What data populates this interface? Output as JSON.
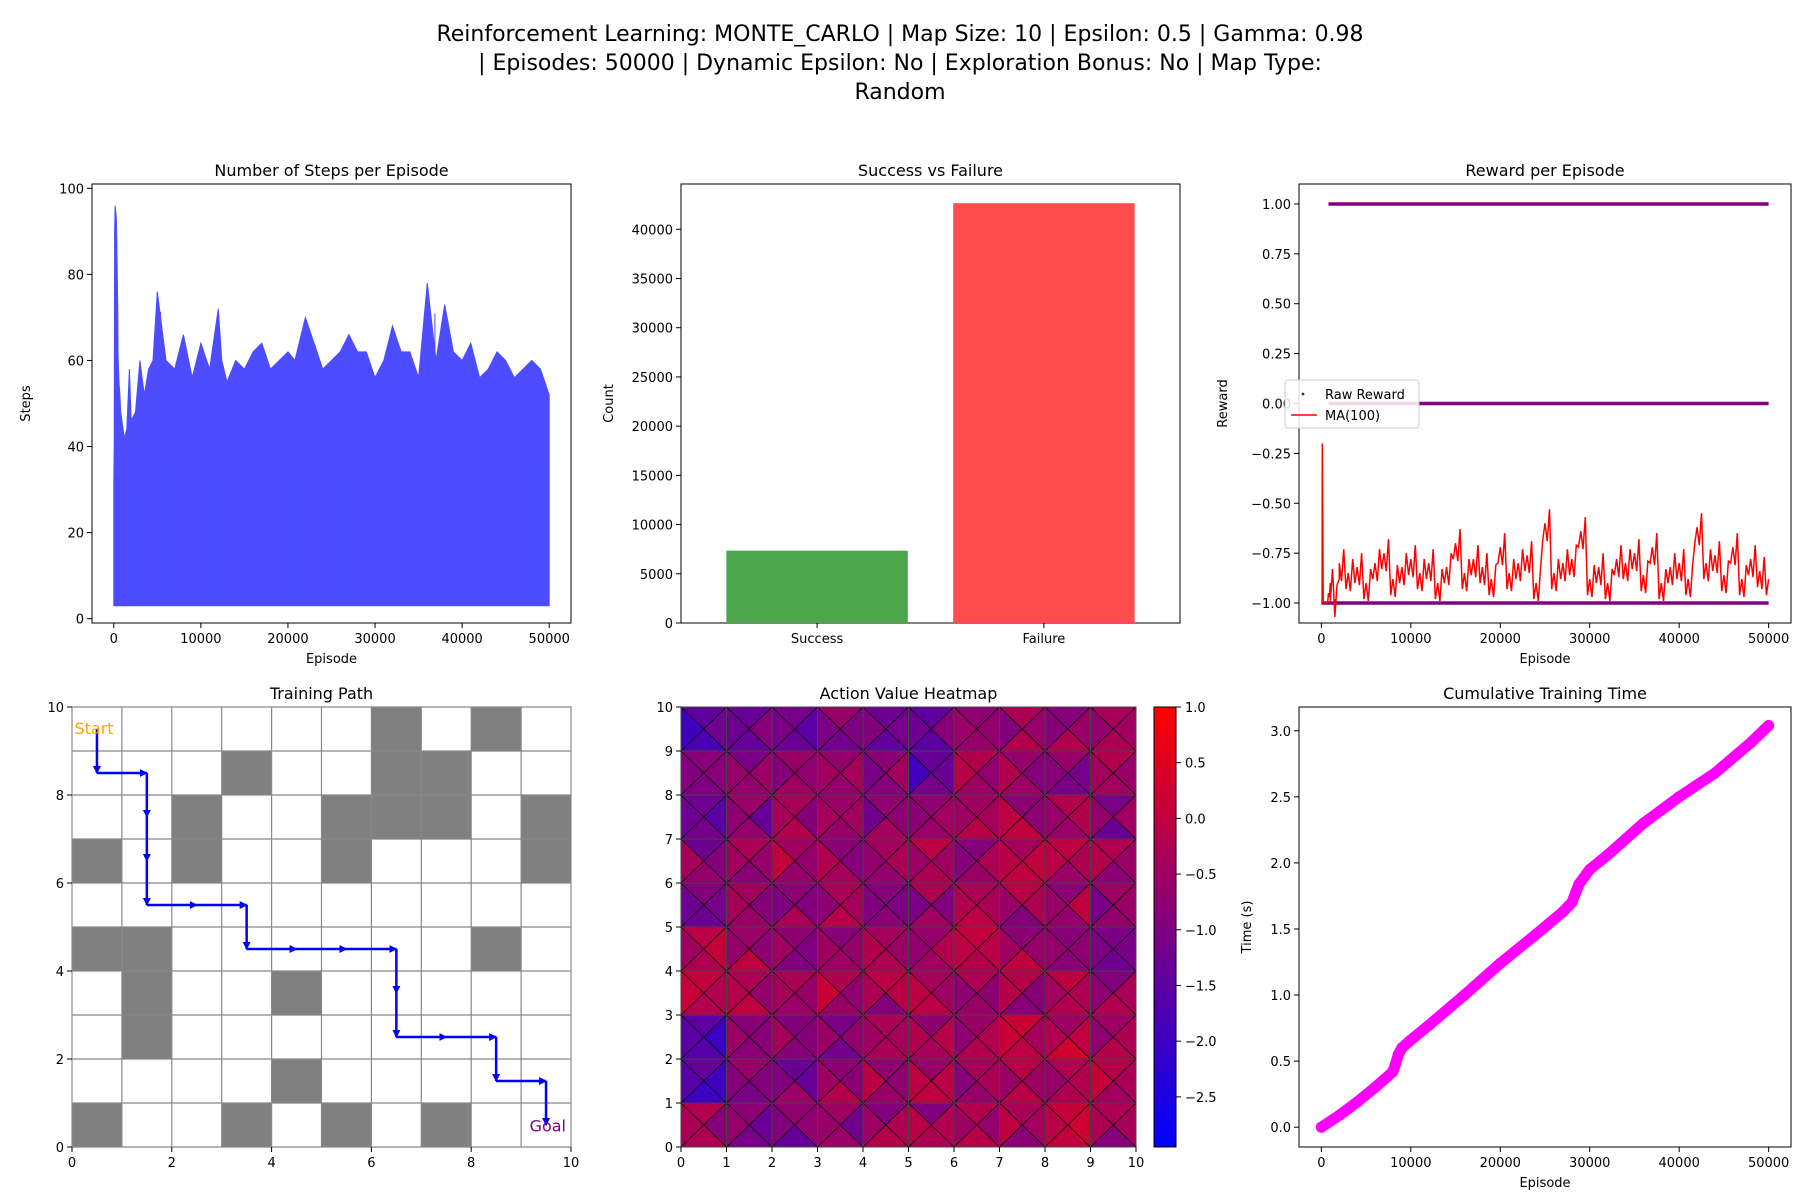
{
  "figure": {
    "suptitle_lines": [
      "Reinforcement Learning: MONTE_CARLO | Map Size: 10 | Epsilon: 0.5 | Gamma: 0.98",
      "| Episodes: 50000 | Dynamic Epsilon: No | Exploration Bonus: No | Map Type:",
      "Random"
    ]
  },
  "chart_data": [
    {
      "id": "steps",
      "type": "line",
      "title": "Number of Steps per Episode",
      "xlabel": "Episode",
      "ylabel": "Steps",
      "xlim": [
        -2500,
        52500
      ],
      "ylim": [
        -1,
        101
      ],
      "xticks": [
        0,
        10000,
        20000,
        30000,
        40000,
        50000
      ],
      "yticks": [
        0,
        20,
        40,
        60,
        80,
        100
      ],
      "color": "#4d4dff",
      "series": [
        {
          "x": [
            0,
            50,
            100,
            150,
            200,
            250,
            300,
            350,
            400,
            450,
            500,
            600,
            700,
            800,
            1000,
            1200,
            1500,
            1800,
            2000,
            2500,
            3000,
            3500,
            4000,
            4500,
            5000,
            6000,
            7000,
            8000,
            9000,
            10000,
            11000,
            12000,
            12400,
            13000,
            14000,
            15000,
            16000,
            17000,
            18000,
            20000,
            20800,
            22000,
            24000,
            26000,
            27000,
            28000,
            29000,
            30000,
            31000,
            32000,
            33000,
            34000,
            35000,
            36000,
            37000,
            38000,
            39000,
            40000,
            41000,
            42000,
            43000,
            44000,
            45000,
            46000,
            47000,
            48000,
            49000,
            50000
          ],
          "peak": [
            32,
            40,
            90,
            96,
            95,
            94,
            93,
            88,
            80,
            73,
            61,
            55,
            52,
            48,
            45,
            42,
            44,
            58,
            46,
            48,
            60,
            52,
            58,
            60,
            76,
            60,
            58,
            66,
            56,
            64,
            58,
            72,
            60,
            55,
            60,
            58,
            62,
            64,
            58,
            62,
            60,
            70,
            58,
            62,
            66,
            62,
            62,
            56,
            60,
            68,
            62,
            62,
            56,
            78,
            60,
            73,
            62,
            60,
            64,
            56,
            58,
            62,
            60,
            56,
            58,
            60,
            58,
            52
          ],
          "floor": 3
        }
      ]
    },
    {
      "id": "success",
      "type": "bar",
      "title": "Success vs Failure",
      "xlabel": "",
      "ylabel": "Count",
      "ylim": [
        0,
        44600
      ],
      "yticks": [
        0,
        5000,
        10000,
        15000,
        20000,
        25000,
        30000,
        35000,
        40000
      ],
      "categories": [
        "Success",
        "Failure"
      ],
      "values": [
        7350,
        42650
      ],
      "colors": [
        "#4ca64c",
        "#ff4d4d"
      ]
    },
    {
      "id": "reward",
      "type": "line",
      "title": "Reward per Episode",
      "xlabel": "Episode",
      "ylabel": "Reward",
      "xlim": [
        -2500,
        52500
      ],
      "ylim": [
        -1.1,
        1.1
      ],
      "xticks": [
        0,
        10000,
        20000,
        30000,
        40000,
        50000
      ],
      "yticks": [
        -1.0,
        -0.75,
        -0.5,
        -0.25,
        0.0,
        0.25,
        0.5,
        0.75,
        1.0
      ],
      "legend": {
        "position": "center-left",
        "entries": [
          "Raw Reward",
          "MA(100)"
        ]
      },
      "raw_reward_levels": [
        -1,
        0,
        1
      ],
      "raw_color": "#800080",
      "ma_color": "#ff0000",
      "ma100": {
        "x": [
          0,
          80,
          100,
          200,
          400,
          600,
          700,
          800,
          900,
          1000,
          1500,
          2000,
          3000,
          4000,
          5000,
          6000,
          7000,
          8000,
          9000,
          10000,
          11000,
          12000,
          13000,
          14000,
          15000,
          16000,
          17000,
          18000,
          19000,
          20000,
          21000,
          22000,
          23000,
          24000,
          25000,
          26000,
          27000,
          28000,
          29000,
          30000,
          31000,
          32000,
          33000,
          34000,
          35000,
          36000,
          37000,
          38000,
          39000,
          40000,
          41000,
          42000,
          43000,
          44000,
          45000,
          46000,
          47000,
          48000,
          49000,
          50000
        ],
        "y": [
          -1.0,
          -1.0,
          -0.2,
          -1.0,
          -1.0,
          -1.0,
          -1.0,
          -0.95,
          -0.97,
          -0.9,
          -0.98,
          -0.8,
          -0.85,
          -0.82,
          -0.9,
          -0.8,
          -0.75,
          -0.88,
          -0.82,
          -0.78,
          -0.85,
          -0.8,
          -0.9,
          -0.82,
          -0.7,
          -0.85,
          -0.78,
          -0.82,
          -0.88,
          -0.72,
          -0.85,
          -0.8,
          -0.76,
          -0.9,
          -0.6,
          -0.85,
          -0.8,
          -0.78,
          -0.64,
          -0.88,
          -0.82,
          -0.9,
          -0.78,
          -0.8,
          -0.75,
          -0.86,
          -0.72,
          -0.9,
          -0.82,
          -0.8,
          -0.88,
          -0.62,
          -0.8,
          -0.76,
          -0.86,
          -0.72,
          -0.88,
          -0.78,
          -0.84,
          -0.88
        ]
      }
    },
    {
      "id": "path",
      "type": "heatmap",
      "title": "Training Path",
      "xlim": [
        0,
        10
      ],
      "ylim": [
        0,
        10
      ],
      "xticks": [
        0,
        2,
        4,
        6,
        8,
        10
      ],
      "yticks": [
        0,
        2,
        4,
        6,
        8,
        10
      ],
      "obstacles": [
        [
          6,
          9
        ],
        [
          8,
          9
        ],
        [
          3,
          8
        ],
        [
          6,
          8
        ],
        [
          7,
          8
        ],
        [
          2,
          7
        ],
        [
          5,
          7
        ],
        [
          6,
          7
        ],
        [
          7,
          7
        ],
        [
          9,
          7
        ],
        [
          0,
          6
        ],
        [
          2,
          6
        ],
        [
          5,
          6
        ],
        [
          9,
          6
        ],
        [
          0,
          4
        ],
        [
          1,
          4
        ],
        [
          8,
          4
        ],
        [
          1,
          3
        ],
        [
          4,
          3
        ],
        [
          1,
          2
        ],
        [
          4,
          1
        ],
        [
          0,
          0
        ],
        [
          3,
          0
        ],
        [
          5,
          0
        ],
        [
          7,
          0
        ]
      ],
      "path": [
        [
          0.5,
          9.5
        ],
        [
          0.5,
          8.5
        ],
        [
          1.5,
          8.5
        ],
        [
          1.5,
          7.5
        ],
        [
          1.5,
          6.5
        ],
        [
          1.5,
          5.5
        ],
        [
          2.5,
          5.5
        ],
        [
          3.5,
          5.5
        ],
        [
          3.5,
          4.5
        ],
        [
          4.5,
          4.5
        ],
        [
          5.5,
          4.5
        ],
        [
          6.5,
          4.5
        ],
        [
          6.5,
          3.5
        ],
        [
          6.5,
          2.5
        ],
        [
          7.5,
          2.5
        ],
        [
          8.5,
          2.5
        ],
        [
          8.5,
          1.5
        ],
        [
          9.5,
          1.5
        ],
        [
          9.5,
          0.5
        ]
      ],
      "start_label": "Start",
      "goal_label": "Goal",
      "start_color": "#ffa500",
      "goal_color": "#800080",
      "arrow_color": "#0000ff",
      "obstacle_color": "#808080"
    },
    {
      "id": "heat",
      "type": "heatmap",
      "title": "Action Value Heatmap",
      "xlim": [
        0,
        10
      ],
      "ylim": [
        0,
        10
      ],
      "xticks": [
        0,
        1,
        2,
        3,
        4,
        5,
        6,
        7,
        8,
        9,
        10
      ],
      "yticks": [
        0,
        1,
        2,
        3,
        4,
        5,
        6,
        7,
        8,
        9,
        10
      ],
      "colorbar": {
        "min": -2.95,
        "max": 1.0,
        "ticks": [
          1.0,
          0.5,
          0.0,
          -0.5,
          -1.0,
          -1.5,
          -2.0,
          -2.5
        ],
        "tick_labels": [
          "1.0",
          "0.5",
          "0.0",
          "−0.5",
          "−1.0",
          "−1.5",
          "−2.0",
          "−2.5"
        ]
      },
      "colormap": [
        "#0000ff",
        "#ff0000"
      ],
      "cell_value_rows_top_to_bottom": [
        [
          -1.6,
          -1.1,
          -1.4,
          -1.0,
          -1.2,
          -1.1,
          -0.7,
          -0.5,
          -0.5,
          -0.6
        ],
        [
          -1.1,
          -0.9,
          -0.7,
          -0.4,
          -0.8,
          -1.5,
          -0.4,
          -0.5,
          -0.7,
          -0.6
        ],
        [
          -1.2,
          -1.0,
          -0.5,
          -0.6,
          -0.8,
          -0.6,
          -0.3,
          -0.4,
          -0.5,
          -0.9
        ],
        [
          -0.8,
          -0.5,
          -0.3,
          -0.5,
          -0.6,
          -0.4,
          -0.6,
          -0.3,
          -0.3,
          -0.4
        ],
        [
          -0.9,
          -0.6,
          -0.7,
          -0.5,
          -0.6,
          -0.7,
          -0.4,
          -0.5,
          -0.4,
          -0.9
        ],
        [
          -0.3,
          -0.4,
          -0.6,
          -0.5,
          -0.4,
          -0.6,
          -0.2,
          -0.4,
          -0.4,
          -1.0
        ],
        [
          -0.3,
          -0.4,
          -0.5,
          -0.3,
          -0.5,
          -0.2,
          -0.5,
          -0.4,
          -0.3,
          -0.6
        ],
        [
          -1.6,
          -0.4,
          -0.8,
          -0.8,
          -0.3,
          -0.4,
          -0.3,
          -0.2,
          -0.1,
          -0.3
        ],
        [
          -1.8,
          -0.9,
          -0.9,
          -0.6,
          -0.4,
          -0.4,
          -0.5,
          -0.2,
          -0.3,
          -0.2
        ],
        [
          -0.6,
          -0.9,
          -1.0,
          -0.8,
          -0.5,
          -0.5,
          -0.5,
          -0.4,
          -0.2,
          -0.5
        ]
      ]
    },
    {
      "id": "time",
      "type": "scatter",
      "title": "Cumulative Training Time",
      "xlabel": "Episode",
      "ylabel": "Time (s)",
      "xlim": [
        -2500,
        52500
      ],
      "ylim": [
        -0.15,
        3.18
      ],
      "xticks": [
        0,
        10000,
        20000,
        30000,
        40000,
        50000
      ],
      "yticks": [
        0.0,
        0.5,
        1.0,
        1.5,
        2.0,
        2.5,
        3.0
      ],
      "color": "#ff00ff",
      "series": [
        {
          "x": [
            0,
            2000,
            4000,
            6000,
            8000,
            8300,
            8600,
            9000,
            10000,
            12000,
            16000,
            20000,
            24000,
            27000,
            28000,
            28400,
            28800,
            30000,
            32000,
            36000,
            40000,
            44000,
            48000,
            50000
          ],
          "y": [
            0.0,
            0.09,
            0.19,
            0.3,
            0.42,
            0.48,
            0.55,
            0.6,
            0.66,
            0.77,
            1.0,
            1.24,
            1.46,
            1.63,
            1.7,
            1.77,
            1.84,
            1.95,
            2.06,
            2.3,
            2.5,
            2.68,
            2.91,
            3.04
          ]
        }
      ]
    }
  ]
}
